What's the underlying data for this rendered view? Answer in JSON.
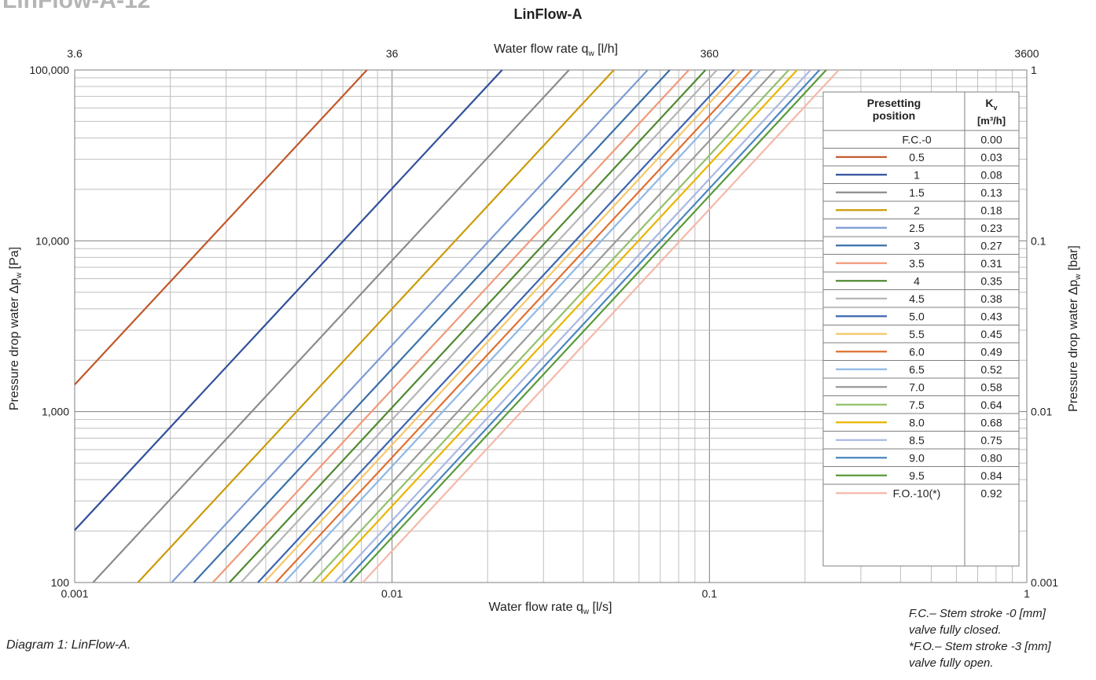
{
  "header_crop": "LinFlow-A-12",
  "caption": "Diagram 1: LinFlow-A.",
  "notes": {
    "fc_line1": "F.C.– Stem stroke -0 [mm]",
    "fc_line2": "valve fully closed.",
    "fo_line1": "*F.O.– Stem stroke -3 [mm]",
    "fo_line2": "valve fully open."
  },
  "chart_data": {
    "type": "line",
    "title": "LinFlow-A",
    "xlabel_bottom_main": "Water flow rate q",
    "xlabel_bottom_sub": "w",
    "xlabel_bottom_unit": " [l/s]",
    "xlabel_top_main": "Water flow rate q",
    "xlabel_top_sub": "w",
    "xlabel_top_unit": " [l/h]",
    "ylabel_left_main": "Pressure drop water  Δp",
    "ylabel_left_sub": "w",
    "ylabel_left_unit": " [Pa]",
    "ylabel_right_main": "Pressure drop water  Δp",
    "ylabel_right_sub": "w",
    "ylabel_right_unit": " [bar]",
    "x_scale": "log",
    "y_scale": "log",
    "xlim": [
      0.001,
      1
    ],
    "ylim": [
      100,
      100000
    ],
    "grid": true,
    "x_ticks": [
      {
        "value": 0.001,
        "label": "0.001"
      },
      {
        "value": 0.01,
        "label": "0.01"
      },
      {
        "value": 0.1,
        "label": "0.1"
      },
      {
        "value": 1,
        "label": "1"
      }
    ],
    "x_top_ticks": [
      {
        "value": 0.001,
        "label": "3.6"
      },
      {
        "value": 0.01,
        "label": "36"
      },
      {
        "value": 0.1,
        "label": "360"
      },
      {
        "value": 1,
        "label": "3600"
      }
    ],
    "y_ticks": [
      {
        "value": 100,
        "label": "100"
      },
      {
        "value": 1000,
        "label": "1,000"
      },
      {
        "value": 10000,
        "label": "10,000"
      },
      {
        "value": 100000,
        "label": "100,000"
      }
    ],
    "y_right_ticks": [
      {
        "value": 100,
        "label": "0.001"
      },
      {
        "value": 1000,
        "label": "0.01"
      },
      {
        "value": 10000,
        "label": "0.1"
      },
      {
        "value": 100000,
        "label": "1"
      }
    ],
    "legend_position": "right",
    "legend_header_position": "Presetting position",
    "legend_header_kv": "K",
    "legend_header_kv_sub": "v",
    "legend_header_kv_unit": "[m³/h]",
    "series": [
      {
        "name": "F.C.-0",
        "kv": "0.00",
        "color": null
      },
      {
        "name": "0.5",
        "kv": "0.03",
        "color": "#c0582a"
      },
      {
        "name": "1",
        "kv": "0.08",
        "color": "#2f4f9a"
      },
      {
        "name": "1.5",
        "kv": "0.13",
        "color": "#8c8c8c"
      },
      {
        "name": "2",
        "kv": "0.18",
        "color": "#cc9a06"
      },
      {
        "name": "2.5",
        "kv": "0.23",
        "color": "#7d9bd6"
      },
      {
        "name": "3",
        "kv": "0.27",
        "color": "#3a6fa8"
      },
      {
        "name": "3.5",
        "kv": "0.31",
        "color": "#f0997a"
      },
      {
        "name": "4",
        "kv": "0.35",
        "color": "#4f8a2f"
      },
      {
        "name": "4.5",
        "kv": "0.38",
        "color": "#b5b5b5"
      },
      {
        "name": "5.0",
        "kv": "0.43",
        "color": "#3d65b0"
      },
      {
        "name": "5.5",
        "kv": "0.45",
        "color": "#f5c86a"
      },
      {
        "name": "6.0",
        "kv": "0.49",
        "color": "#e07030"
      },
      {
        "name": "6.5",
        "kv": "0.52",
        "color": "#8fb8e6"
      },
      {
        "name": "7.0",
        "kv": "0.58",
        "color": "#9a9a9a"
      },
      {
        "name": "7.5",
        "kv": "0.64",
        "color": "#93c06a"
      },
      {
        "name": "8.0",
        "kv": "0.68",
        "color": "#e8b600"
      },
      {
        "name": "8.5",
        "kv": "0.75",
        "color": "#aab8e2"
      },
      {
        "name": "9.0",
        "kv": "0.80",
        "color": "#4a86c0"
      },
      {
        "name": "9.5",
        "kv": "0.84",
        "color": "#5a9a3a"
      },
      {
        "name": "F.O.-10(*)",
        "kv": "0.92",
        "color": "#f4b8aa"
      }
    ]
  }
}
